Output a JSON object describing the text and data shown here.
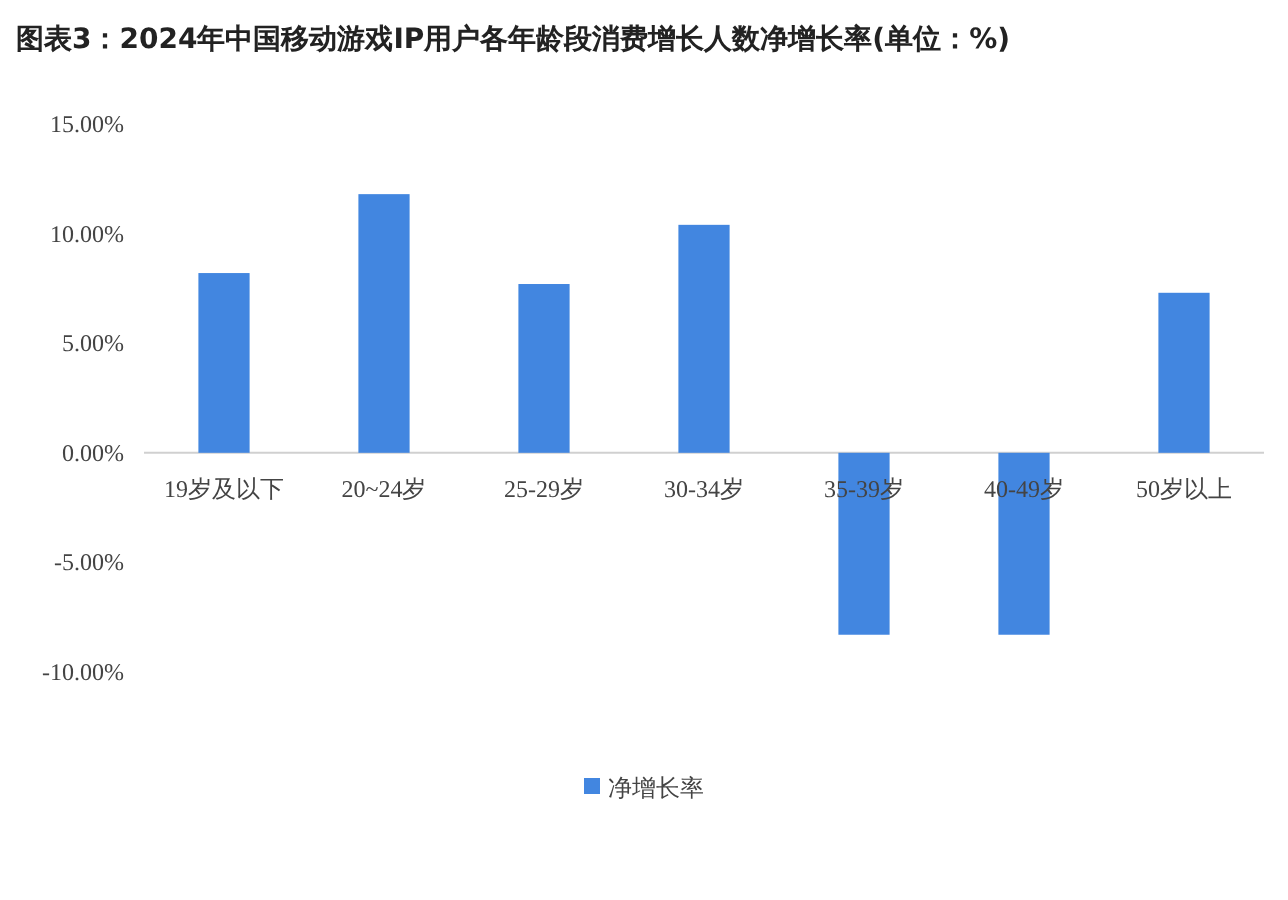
{
  "chart_data": {
    "type": "bar",
    "title": "图表3：2024年中国移动游戏IP用户各年龄段消费增长人数净增长率(单位：%)",
    "categories": [
      "19岁及以下",
      "20~24岁",
      "25-29岁",
      "30-34岁",
      "35-39岁",
      "40-49岁",
      "50岁以上"
    ],
    "series": [
      {
        "name": "净增长率",
        "color": "#4286e0",
        "values": [
          8.2,
          11.8,
          7.7,
          10.4,
          -8.3,
          -8.3,
          7.3
        ]
      }
    ],
    "ylim": [
      -10,
      15
    ],
    "yticks": [
      {
        "value": -10,
        "label": "-10.00%"
      },
      {
        "value": -5,
        "label": "-5.00%"
      },
      {
        "value": 0,
        "label": "0.00%"
      },
      {
        "value": 5,
        "label": "5.00%"
      },
      {
        "value": 10,
        "label": "10.00%"
      },
      {
        "value": 15,
        "label": "15.00%"
      }
    ],
    "grid": false,
    "legend": "bottom"
  }
}
